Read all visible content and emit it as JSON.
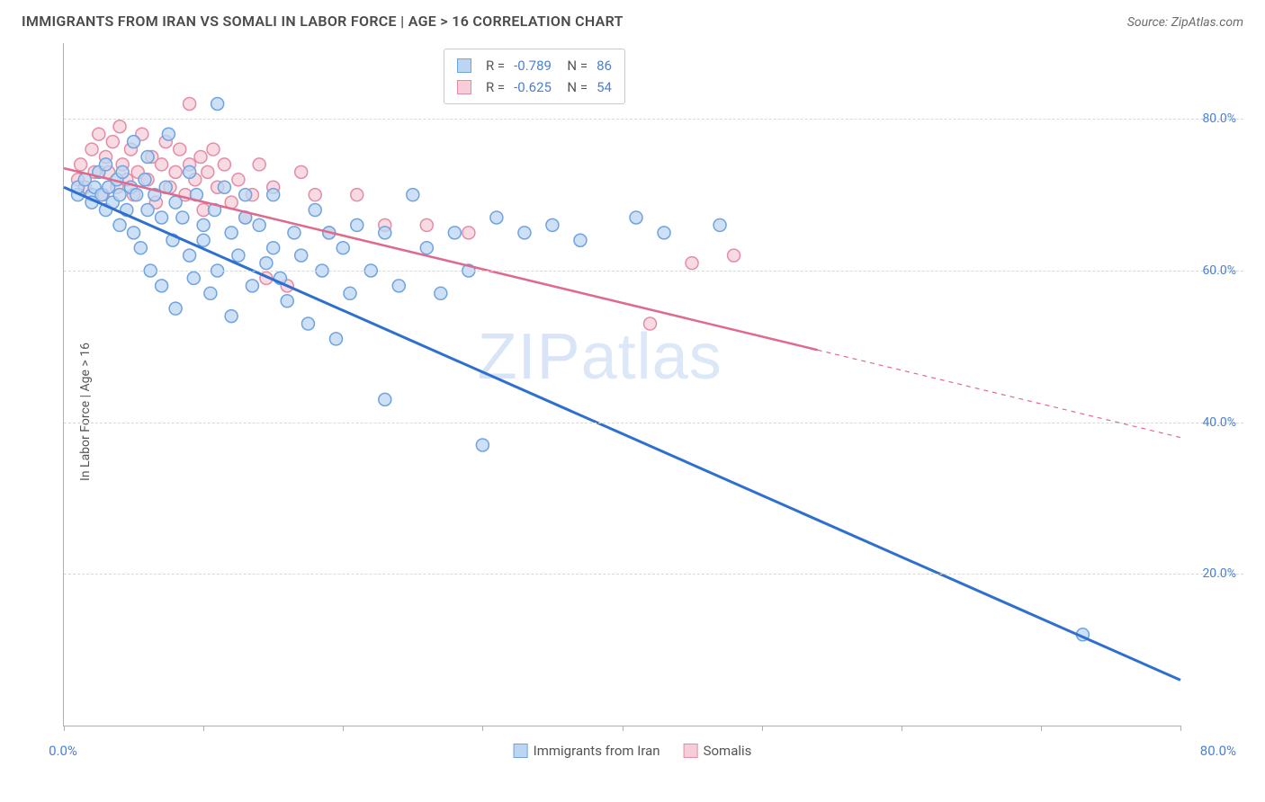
{
  "header": {
    "title": "IMMIGRANTS FROM IRAN VS SOMALI IN LABOR FORCE | AGE > 16 CORRELATION CHART",
    "source": "Source: ZipAtlas.com"
  },
  "chart": {
    "type": "scatter",
    "y_axis_title": "In Labor Force | Age > 16",
    "xlim": [
      0,
      80
    ],
    "ylim": [
      0,
      90
    ],
    "y_ticks": [
      20,
      40,
      60,
      80
    ],
    "y_tick_labels": [
      "20.0%",
      "40.0%",
      "60.0%",
      "80.0%"
    ],
    "x_origin_label": "0.0%",
    "x_max_label": "80.0%",
    "x_tick_positions": [
      0,
      10,
      20,
      30,
      40,
      50,
      60,
      70,
      80
    ],
    "background_color": "#ffffff",
    "grid_color": "#d8d8d8",
    "axis_color": "#b0b0b0",
    "tick_label_color": "#4a80d6",
    "marker_radius": 7,
    "marker_stroke_width": 1.5,
    "watermark": {
      "part1": "ZIP",
      "part2": "atlas"
    },
    "series": [
      {
        "name": "Immigrants from Iran",
        "color_fill": "#bcd5f2",
        "color_stroke": "#6fa3e0",
        "line_color": "#2f6fd0",
        "line_width": 3,
        "R": "-0.789",
        "N": "86",
        "regression": {
          "x1": 0,
          "y1": 71,
          "x2": 80,
          "y2": 6,
          "dash_from_x": 80
        },
        "points": [
          [
            1,
            70
          ],
          [
            1,
            71
          ],
          [
            1.5,
            72
          ],
          [
            2,
            70
          ],
          [
            2,
            69
          ],
          [
            2.2,
            71
          ],
          [
            2.5,
            73
          ],
          [
            2.7,
            70
          ],
          [
            3,
            68
          ],
          [
            3,
            74
          ],
          [
            3.2,
            71
          ],
          [
            3.5,
            69
          ],
          [
            3.8,
            72
          ],
          [
            4,
            70
          ],
          [
            4,
            66
          ],
          [
            4.2,
            73
          ],
          [
            4.5,
            68
          ],
          [
            4.8,
            71
          ],
          [
            5,
            65
          ],
          [
            5,
            77
          ],
          [
            5.2,
            70
          ],
          [
            5.5,
            63
          ],
          [
            5.8,
            72
          ],
          [
            6,
            68
          ],
          [
            6,
            75
          ],
          [
            6.2,
            60
          ],
          [
            6.5,
            70
          ],
          [
            7,
            67
          ],
          [
            7,
            58
          ],
          [
            7.3,
            71
          ],
          [
            7.5,
            78
          ],
          [
            7.8,
            64
          ],
          [
            8,
            69
          ],
          [
            8,
            55
          ],
          [
            8.5,
            67
          ],
          [
            9,
            62
          ],
          [
            9,
            73
          ],
          [
            9.3,
            59
          ],
          [
            9.5,
            70
          ],
          [
            10,
            64
          ],
          [
            10,
            66
          ],
          [
            10.5,
            57
          ],
          [
            10.8,
            68
          ],
          [
            11,
            82
          ],
          [
            11,
            60
          ],
          [
            11.5,
            71
          ],
          [
            12,
            65
          ],
          [
            12,
            54
          ],
          [
            12.5,
            62
          ],
          [
            13,
            67
          ],
          [
            13,
            70
          ],
          [
            13.5,
            58
          ],
          [
            14,
            66
          ],
          [
            14.5,
            61
          ],
          [
            15,
            63
          ],
          [
            15,
            70
          ],
          [
            15.5,
            59
          ],
          [
            16,
            56
          ],
          [
            16.5,
            65
          ],
          [
            17,
            62
          ],
          [
            17.5,
            53
          ],
          [
            18,
            68
          ],
          [
            18.5,
            60
          ],
          [
            19,
            65
          ],
          [
            19.5,
            51
          ],
          [
            20,
            63
          ],
          [
            20.5,
            57
          ],
          [
            21,
            66
          ],
          [
            22,
            60
          ],
          [
            23,
            65
          ],
          [
            23,
            43
          ],
          [
            24,
            58
          ],
          [
            25,
            70
          ],
          [
            26,
            63
          ],
          [
            27,
            57
          ],
          [
            28,
            65
          ],
          [
            29,
            60
          ],
          [
            30,
            37
          ],
          [
            31,
            67
          ],
          [
            33,
            65
          ],
          [
            35,
            66
          ],
          [
            37,
            64
          ],
          [
            41,
            67
          ],
          [
            43,
            65
          ],
          [
            47,
            66
          ],
          [
            73,
            12
          ]
        ]
      },
      {
        "name": "Somalis",
        "color_fill": "#f6cdd8",
        "color_stroke": "#e48ca5",
        "line_color": "#e06a8c",
        "line_width": 2.5,
        "R": "-0.625",
        "N": "54",
        "regression": {
          "x1": 0,
          "y1": 73.5,
          "x2": 80,
          "y2": 38,
          "dash_from_x": 54
        },
        "points": [
          [
            1,
            72
          ],
          [
            1.2,
            74
          ],
          [
            1.5,
            71
          ],
          [
            2,
            76
          ],
          [
            2.2,
            73
          ],
          [
            2.5,
            78
          ],
          [
            2.8,
            70
          ],
          [
            3,
            75
          ],
          [
            3.2,
            73
          ],
          [
            3.5,
            77
          ],
          [
            3.8,
            71
          ],
          [
            4,
            79
          ],
          [
            4.2,
            74
          ],
          [
            4.5,
            72
          ],
          [
            4.8,
            76
          ],
          [
            5,
            70
          ],
          [
            5.3,
            73
          ],
          [
            5.6,
            78
          ],
          [
            6,
            72
          ],
          [
            6.3,
            75
          ],
          [
            6.6,
            69
          ],
          [
            7,
            74
          ],
          [
            7.3,
            77
          ],
          [
            7.6,
            71
          ],
          [
            8,
            73
          ],
          [
            8.3,
            76
          ],
          [
            8.7,
            70
          ],
          [
            9,
            82
          ],
          [
            9,
            74
          ],
          [
            9.4,
            72
          ],
          [
            9.8,
            75
          ],
          [
            10,
            68
          ],
          [
            10.3,
            73
          ],
          [
            10.7,
            76
          ],
          [
            11,
            71
          ],
          [
            11.5,
            74
          ],
          [
            12,
            69
          ],
          [
            12.5,
            72
          ],
          [
            13,
            67
          ],
          [
            13.5,
            70
          ],
          [
            14,
            74
          ],
          [
            14.5,
            59
          ],
          [
            15,
            71
          ],
          [
            16,
            58
          ],
          [
            17,
            73
          ],
          [
            18,
            70
          ],
          [
            19,
            65
          ],
          [
            21,
            70
          ],
          [
            23,
            66
          ],
          [
            26,
            66
          ],
          [
            29,
            65
          ],
          [
            42,
            53
          ],
          [
            45,
            61
          ],
          [
            48,
            62
          ]
        ]
      }
    ],
    "legend_bottom": [
      {
        "label": "Immigrants from Iran",
        "fill": "#bcd5f2",
        "stroke": "#6fa3e0"
      },
      {
        "label": "Somalis",
        "fill": "#f6cdd8",
        "stroke": "#e48ca5"
      }
    ]
  }
}
